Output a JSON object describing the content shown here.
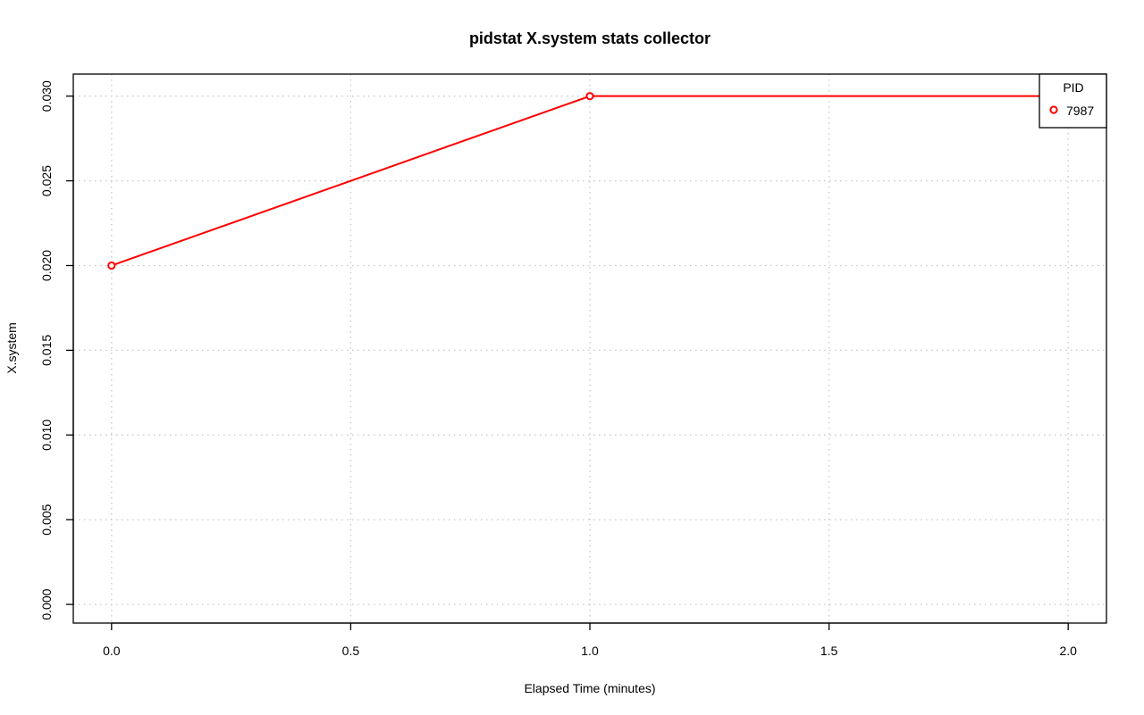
{
  "chart_data": {
    "type": "line",
    "title": "pidstat X.system stats collector",
    "xlabel": "Elapsed Time (minutes)",
    "ylabel": "X.system",
    "xlim": [
      -0.08,
      2.08
    ],
    "ylim": [
      -0.0011,
      0.0313
    ],
    "x_ticks": [
      0.0,
      0.5,
      1.0,
      1.5,
      2.0
    ],
    "x_tick_labels": [
      "0.0",
      "0.5",
      "1.0",
      "1.5",
      "2.0"
    ],
    "y_ticks": [
      0.0,
      0.005,
      0.01,
      0.015,
      0.02,
      0.025,
      0.03
    ],
    "y_tick_labels": [
      "0.000",
      "0.005",
      "0.010",
      "0.015",
      "0.020",
      "0.025",
      "0.030"
    ],
    "grid": true,
    "legend": {
      "title": "PID",
      "position": "top-right"
    },
    "series": [
      {
        "name": "7987",
        "color": "#ff0000",
        "x": [
          0,
          1,
          2
        ],
        "y": [
          0.02,
          0.03,
          0.03
        ]
      }
    ]
  }
}
